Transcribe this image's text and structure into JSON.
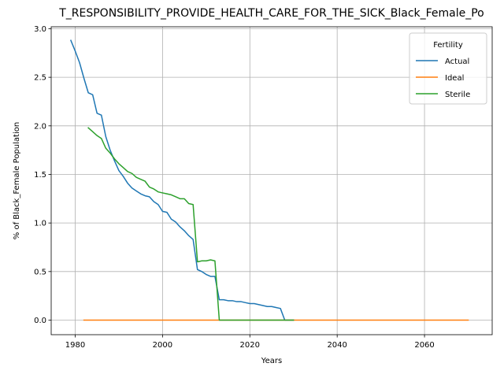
{
  "chart_data": {
    "type": "line",
    "title": "T_RESPONSIBILITY_PROVIDE_HEALTH_CARE_FOR_THE_SICK_Black_Female_Po",
    "xlabel": "Years",
    "ylabel": "% of Black_Female Population",
    "xlim": [
      1974.5,
      2075.5
    ],
    "ylim": [
      -0.15,
      3.02
    ],
    "xticks": [
      1980,
      2000,
      2020,
      2040,
      2060
    ],
    "yticks": [
      0.0,
      0.5,
      1.0,
      1.5,
      2.0,
      2.5,
      3.0
    ],
    "ytick_labels": [
      "0.0",
      "0.5",
      "1.0",
      "1.5",
      "2.0",
      "2.5",
      "3.0"
    ],
    "grid": true,
    "legend": {
      "title": "Fertility",
      "placement": "top-right"
    },
    "series": [
      {
        "name": "Actual",
        "color": "#1f77b4",
        "x": [
          1979,
          1980,
          1981,
          1982,
          1983,
          1984,
          1985,
          1986,
          1987,
          1988,
          1989,
          1990,
          1991,
          1992,
          1993,
          1994,
          1995,
          1996,
          1997,
          1998,
          1999,
          2000,
          2001,
          2002,
          2003,
          2004,
          2005,
          2006,
          2007,
          2008,
          2009,
          2010,
          2011,
          2012,
          2013,
          2014,
          2015,
          2016,
          2017,
          2018,
          2019,
          2020,
          2021,
          2022,
          2023,
          2024,
          2025,
          2026,
          2027,
          2028,
          2029,
          2030
        ],
        "values": [
          2.88,
          2.77,
          2.65,
          2.49,
          2.34,
          2.32,
          2.13,
          2.11,
          1.89,
          1.75,
          1.64,
          1.54,
          1.48,
          1.41,
          1.36,
          1.33,
          1.3,
          1.28,
          1.27,
          1.22,
          1.19,
          1.12,
          1.11,
          1.04,
          1.01,
          0.96,
          0.92,
          0.87,
          0.83,
          0.52,
          0.5,
          0.47,
          0.45,
          0.45,
          0.21,
          0.21,
          0.2,
          0.2,
          0.19,
          0.19,
          0.18,
          0.17,
          0.17,
          0.16,
          0.15,
          0.14,
          0.14,
          0.13,
          0.12,
          0.0,
          0.0,
          0.0
        ]
      },
      {
        "name": "Ideal",
        "color": "#ff7f0e",
        "x": [
          1982,
          2070
        ],
        "values": [
          0.0,
          0.0
        ]
      },
      {
        "name": "Sterile",
        "color": "#2ca02c",
        "x": [
          1983,
          1984,
          1985,
          1986,
          1987,
          1988,
          1989,
          1990,
          1991,
          1992,
          1993,
          1994,
          1995,
          1996,
          1997,
          1998,
          1999,
          2000,
          2001,
          2002,
          2003,
          2004,
          2005,
          2006,
          2007,
          2008,
          2009,
          2010,
          2011,
          2012,
          2013,
          2014,
          2020,
          2030
        ],
        "values": [
          1.98,
          1.94,
          1.9,
          1.87,
          1.77,
          1.72,
          1.66,
          1.61,
          1.57,
          1.53,
          1.51,
          1.47,
          1.45,
          1.43,
          1.37,
          1.35,
          1.32,
          1.31,
          1.3,
          1.29,
          1.27,
          1.25,
          1.25,
          1.2,
          1.19,
          0.6,
          0.61,
          0.61,
          0.62,
          0.61,
          0.0,
          0.0,
          0.0,
          0.0
        ]
      }
    ]
  }
}
